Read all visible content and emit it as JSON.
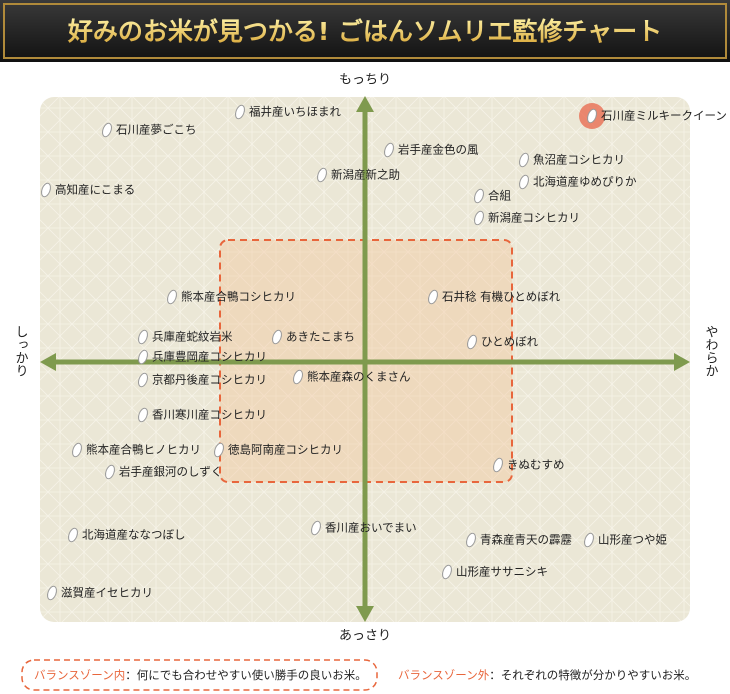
{
  "header": {
    "title": "好みのお米が見つかる! ごはんソムリエ監修チャート"
  },
  "axes": {
    "top": "もっちり",
    "bottom": "あっさり",
    "left": "しっかり",
    "right": "やわらか"
  },
  "items": [
    {
      "label": "福井産いちほまれ"
    },
    {
      "label": "石川産夢ごこち"
    },
    {
      "label": "石川産ミルキークイーン"
    },
    {
      "label": "岩手産金色の風"
    },
    {
      "label": "魚沼産コシヒカリ"
    },
    {
      "label": "新潟産新之助"
    },
    {
      "label": "北海道産ゆめぴりか"
    },
    {
      "label": "高知産にこまる"
    },
    {
      "label": "合組"
    },
    {
      "label": "新潟産コシヒカリ"
    },
    {
      "label": "熊本産合鴨コシヒカリ"
    },
    {
      "label": "石井稔 有機ひとめぼれ"
    },
    {
      "label": "兵庫産蛇紋岩米"
    },
    {
      "label": "あきたこまち"
    },
    {
      "label": "ひとめぼれ"
    },
    {
      "label": "兵庫豊岡産コシヒカリ"
    },
    {
      "label": "京都丹後産コシヒカリ"
    },
    {
      "label": "熊本産森のくまさん"
    },
    {
      "label": "香川寒川産コシヒカリ"
    },
    {
      "label": "熊本産合鴨ヒノヒカリ"
    },
    {
      "label": "徳島阿南産コシヒカリ"
    },
    {
      "label": "岩手産銀河のしずく"
    },
    {
      "label": "きぬむすめ"
    },
    {
      "label": "香川産おいでまい"
    },
    {
      "label": "北海道産ななつぼし"
    },
    {
      "label": "青森産青天の霹靂"
    },
    {
      "label": "山形産つや姫"
    },
    {
      "label": "山形産ササニシキ"
    },
    {
      "label": "滋賀産イセヒカリ"
    }
  ],
  "legend": {
    "inside": {
      "term": "バランスゾーン内",
      "description": "：何にでも合わせやすい使い勝手の良いお米。"
    },
    "outside": {
      "term": "バランスゾーン外",
      "description": "：それぞれの特徴が分かりやすいお米。"
    }
  }
}
